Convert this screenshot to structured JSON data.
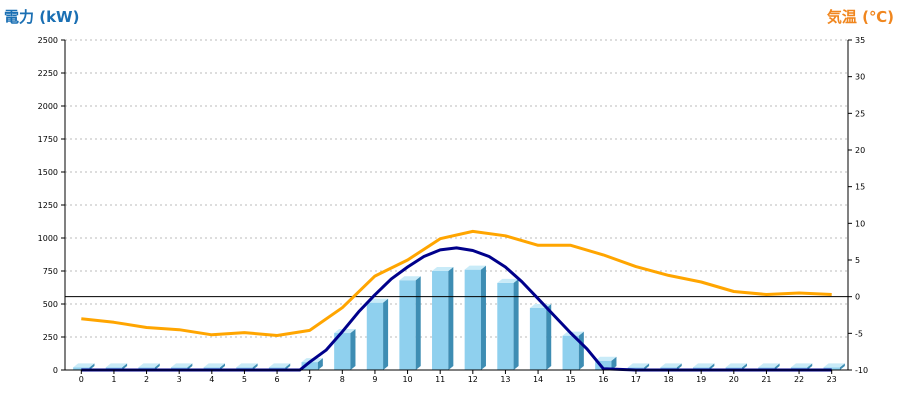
{
  "chart_data": {
    "type": "bar",
    "y_left_label": "電力 (kW)",
    "y_right_label": "気温 (℃)",
    "categories": [
      "0",
      "1",
      "2",
      "3",
      "4",
      "5",
      "6",
      "7",
      "8",
      "9",
      "10",
      "11",
      "12",
      "13",
      "14",
      "15",
      "16",
      "17",
      "18",
      "19",
      "20",
      "21",
      "22",
      "23"
    ],
    "y_left_ticks": [
      "0",
      "250",
      "500",
      "750",
      "1000",
      "1250",
      "1500",
      "1750",
      "2000",
      "2250",
      "2500"
    ],
    "y_right_ticks": [
      "-10",
      "-5",
      "0",
      "5",
      "10",
      "15",
      "20",
      "25",
      "30",
      "35"
    ],
    "y_left_range": [
      0,
      2500
    ],
    "y_right_range": [
      -10,
      35
    ],
    "grid": true,
    "series": [
      {
        "kind": "bar",
        "axis": "left",
        "values": [
          20,
          20,
          20,
          20,
          20,
          20,
          20,
          60,
          280,
          510,
          680,
          750,
          760,
          660,
          470,
          260,
          70,
          20,
          20,
          20,
          20,
          20,
          20,
          20
        ]
      },
      {
        "kind": "line",
        "axis": "left",
        "x": [
          0,
          1,
          2,
          3,
          4,
          5,
          6,
          6.7,
          7,
          7.5,
          8,
          8.5,
          9,
          9.5,
          10,
          10.5,
          11,
          11.5,
          12,
          12.5,
          13,
          13.5,
          14,
          14.5,
          15,
          15.5,
          16,
          17,
          18,
          19,
          20,
          21,
          22,
          23
        ],
        "values": [
          0,
          0,
          0,
          0,
          0,
          0,
          0,
          0,
          60,
          150,
          290,
          440,
          570,
          690,
          780,
          860,
          910,
          925,
          905,
          860,
          780,
          670,
          540,
          410,
          280,
          160,
          10,
          0,
          0,
          0,
          0,
          0,
          0,
          0
        ]
      },
      {
        "kind": "line",
        "axis": "right",
        "values": [
          -3.0,
          -3.5,
          -4.2,
          -4.5,
          -5.2,
          -4.9,
          -5.3,
          -4.6,
          -1.5,
          2.8,
          5.0,
          7.9,
          8.9,
          8.3,
          7.0,
          7.0,
          5.7,
          4.1,
          2.9,
          2.0,
          0.7,
          0.3,
          0.5,
          0.3
        ]
      }
    ],
    "colors": {
      "bar_front": "#8fd0ee",
      "bar_side": "#3e8db3",
      "bar_top": "#c9ebf8",
      "power_line": "#00008b",
      "temp_line": "#ffa500",
      "grid": "#bbbbbb",
      "zero_line": "#000000",
      "left_label": "#1a6fb3",
      "right_label": "#f0861e"
    }
  }
}
